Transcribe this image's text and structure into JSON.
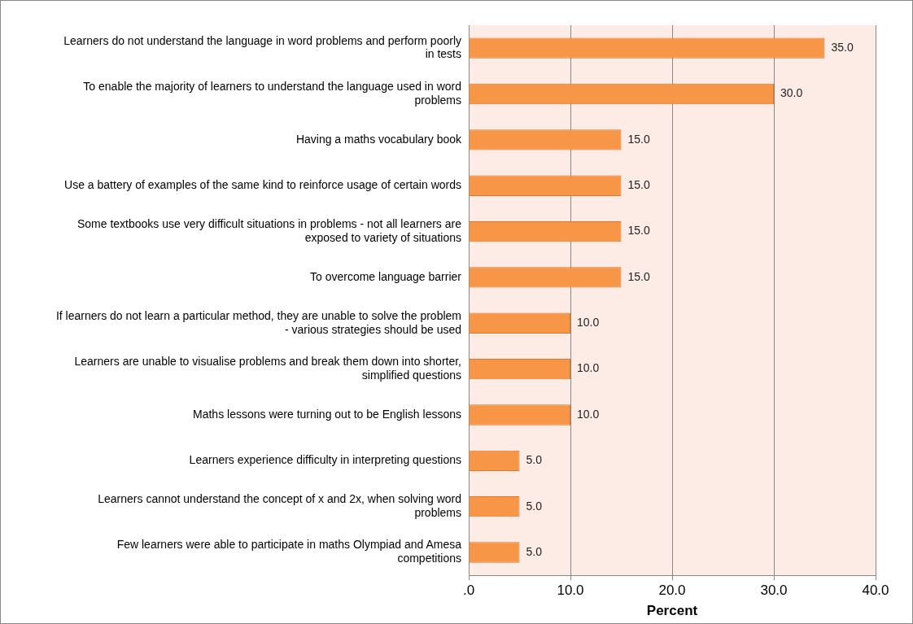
{
  "chart_data": {
    "type": "bar",
    "orientation": "horizontal",
    "xlabel": "Percent",
    "categories": [
      "Learners do not understand the language in word problems and perform poorly in tests",
      "To enable the majority of learners to understand the language used in word problems",
      "Having a maths vocabulary book",
      "Use a battery of examples of the same kind to reinforce usage of certain words",
      "Some textbooks use very difficult situations in problems - not all learners are exposed to variety of situations",
      "To overcome language barrier",
      "If learners do not learn a particular method, they are unable to solve the problem - various strategies should be used",
      "Learners are unable to visualise problems and break them down into shorter, simplified questions",
      "Maths lessons were turning out to be English lessons",
      "Learners experience difficulty in interpreting questions",
      "Learners cannot understand the concept of x and 2x, when solving word problems",
      "Few learners were able to participate in maths Olympiad and Amesa competitions"
    ],
    "values": [
      35,
      30,
      15,
      15,
      15,
      15,
      10,
      10,
      10,
      5,
      5,
      5
    ],
    "value_labels": [
      "35.0",
      "30.0",
      "15.0",
      "15.0",
      "15.0",
      "15.0",
      "10.0",
      "10.0",
      "10.0",
      "5.0",
      "5.0",
      "5.0"
    ],
    "color": "#f79646",
    "xlim": [
      0,
      40
    ],
    "xticks": [
      {
        "value": 0,
        "label": ".0"
      },
      {
        "value": 10,
        "label": "10.0"
      },
      {
        "value": 20,
        "label": "20.0"
      },
      {
        "value": 30,
        "label": "30.0"
      },
      {
        "value": 40,
        "label": "40.0"
      }
    ],
    "grid": "x",
    "legend": false
  }
}
